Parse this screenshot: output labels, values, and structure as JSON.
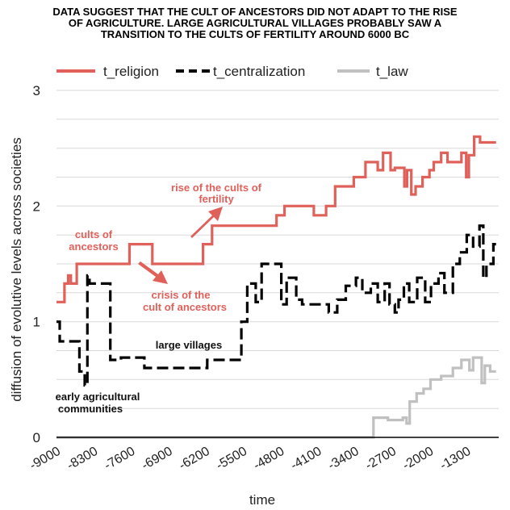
{
  "chart_data": {
    "type": "line",
    "title_lines": [
      "DATA SUGGEST THAT THE CULT OF ANCESTORS DID NOT ADAPT TO THE RISE",
      "OF AGRICULTURE. LARGE AGRICULTURAL VILLAGES PROBABLY SAW A",
      "TRANSITION TO THE CULTS OF FERTILITY AROUND 6000 BC"
    ],
    "xlabel": "time",
    "ylabel": "diffusion of evolutive levels across societies",
    "xlim": [
      -9000,
      -700
    ],
    "ylim": [
      0,
      3
    ],
    "x_ticks": [
      "-9000",
      "-8300",
      "-7600",
      "-6900",
      "-6200",
      "-5500",
      "-4800",
      "-4100",
      "-3400",
      "-2700",
      "-2000",
      "-1300"
    ],
    "y_ticks": [
      "0",
      "1",
      "2",
      "3"
    ],
    "colors": {
      "religion": "#e0605a",
      "centralization": "#000000",
      "law": "#c0c0c0",
      "grid": "#d9d9d9"
    },
    "series": [
      {
        "name": "t_religion",
        "style": "solid",
        "color": "#e0605a",
        "points": [
          [
            -9000,
            1.17
          ],
          [
            -8850,
            1.17
          ],
          [
            -8850,
            1.33
          ],
          [
            -8780,
            1.33
          ],
          [
            -8780,
            1.4
          ],
          [
            -8730,
            1.4
          ],
          [
            -8730,
            1.33
          ],
          [
            -8620,
            1.33
          ],
          [
            -8620,
            1.5
          ],
          [
            -7630,
            1.5
          ],
          [
            -7630,
            1.67
          ],
          [
            -7200,
            1.67
          ],
          [
            -7200,
            1.5
          ],
          [
            -6250,
            1.5
          ],
          [
            -6250,
            1.67
          ],
          [
            -6080,
            1.67
          ],
          [
            -6080,
            1.83
          ],
          [
            -4870,
            1.83
          ],
          [
            -4870,
            1.92
          ],
          [
            -4720,
            1.92
          ],
          [
            -4720,
            2.0
          ],
          [
            -4170,
            2.0
          ],
          [
            -4170,
            1.92
          ],
          [
            -3940,
            1.92
          ],
          [
            -3940,
            2.0
          ],
          [
            -3770,
            2.0
          ],
          [
            -3770,
            2.17
          ],
          [
            -3420,
            2.17
          ],
          [
            -3420,
            2.25
          ],
          [
            -3200,
            2.25
          ],
          [
            -3200,
            2.38
          ],
          [
            -2970,
            2.38
          ],
          [
            -2970,
            2.31
          ],
          [
            -2870,
            2.31
          ],
          [
            -2870,
            2.46
          ],
          [
            -2730,
            2.46
          ],
          [
            -2730,
            2.31
          ],
          [
            -2650,
            2.31
          ],
          [
            -2650,
            2.33
          ],
          [
            -2470,
            2.33
          ],
          [
            -2470,
            2.17
          ],
          [
            -2420,
            2.17
          ],
          [
            -2420,
            2.31
          ],
          [
            -2340,
            2.31
          ],
          [
            -2340,
            2.1
          ],
          [
            -2260,
            2.1
          ],
          [
            -2260,
            2.17
          ],
          [
            -2130,
            2.17
          ],
          [
            -2130,
            2.25
          ],
          [
            -2000,
            2.25
          ],
          [
            -2000,
            2.31
          ],
          [
            -1920,
            2.31
          ],
          [
            -1920,
            2.38
          ],
          [
            -1780,
            2.38
          ],
          [
            -1780,
            2.46
          ],
          [
            -1660,
            2.46
          ],
          [
            -1660,
            2.38
          ],
          [
            -1400,
            2.38
          ],
          [
            -1400,
            2.46
          ],
          [
            -1310,
            2.46
          ],
          [
            -1310,
            2.25
          ],
          [
            -1260,
            2.25
          ],
          [
            -1260,
            2.44
          ],
          [
            -1160,
            2.44
          ],
          [
            -1160,
            2.6
          ],
          [
            -1050,
            2.6
          ],
          [
            -1050,
            2.55
          ],
          [
            -750,
            2.55
          ]
        ]
      },
      {
        "name": "t_centralization",
        "style": "dashed",
        "color": "#000000",
        "points": [
          [
            -9000,
            1.0
          ],
          [
            -8940,
            1.0
          ],
          [
            -8940,
            0.83
          ],
          [
            -8570,
            0.83
          ],
          [
            -8570,
            0.57
          ],
          [
            -8470,
            0.57
          ],
          [
            -8470,
            0.45
          ],
          [
            -8420,
            0.45
          ],
          [
            -8420,
            1.4
          ],
          [
            -8380,
            1.4
          ],
          [
            -8380,
            1.33
          ],
          [
            -7990,
            1.33
          ],
          [
            -7990,
            0.67
          ],
          [
            -7790,
            0.67
          ],
          [
            -7790,
            0.69
          ],
          [
            -7350,
            0.69
          ],
          [
            -7350,
            0.6
          ],
          [
            -6170,
            0.6
          ],
          [
            -6170,
            0.67
          ],
          [
            -5530,
            0.67
          ],
          [
            -5530,
            1.0
          ],
          [
            -5420,
            1.0
          ],
          [
            -5420,
            1.33
          ],
          [
            -5260,
            1.33
          ],
          [
            -5260,
            1.17
          ],
          [
            -5150,
            1.17
          ],
          [
            -5150,
            1.5
          ],
          [
            -4780,
            1.5
          ],
          [
            -4780,
            1.15
          ],
          [
            -4680,
            1.15
          ],
          [
            -4680,
            1.38
          ],
          [
            -4500,
            1.38
          ],
          [
            -4500,
            1.19
          ],
          [
            -4390,
            1.19
          ],
          [
            -4390,
            1.15
          ],
          [
            -3890,
            1.15
          ],
          [
            -3890,
            1.08
          ],
          [
            -3730,
            1.08
          ],
          [
            -3730,
            1.19
          ],
          [
            -3570,
            1.19
          ],
          [
            -3570,
            1.31
          ],
          [
            -3380,
            1.31
          ],
          [
            -3380,
            1.38
          ],
          [
            -3260,
            1.38
          ],
          [
            -3260,
            1.25
          ],
          [
            -3100,
            1.25
          ],
          [
            -3100,
            1.33
          ],
          [
            -2970,
            1.33
          ],
          [
            -2970,
            1.17
          ],
          [
            -2840,
            1.17
          ],
          [
            -2840,
            1.33
          ],
          [
            -2750,
            1.33
          ],
          [
            -2750,
            1.15
          ],
          [
            -2650,
            1.15
          ],
          [
            -2650,
            1.08
          ],
          [
            -2580,
            1.08
          ],
          [
            -2580,
            1.19
          ],
          [
            -2480,
            1.19
          ],
          [
            -2480,
            1.33
          ],
          [
            -2380,
            1.33
          ],
          [
            -2380,
            1.17
          ],
          [
            -2230,
            1.17
          ],
          [
            -2230,
            1.38
          ],
          [
            -2080,
            1.38
          ],
          [
            -2080,
            1.17
          ],
          [
            -1970,
            1.17
          ],
          [
            -1970,
            1.33
          ],
          [
            -1830,
            1.33
          ],
          [
            -1830,
            1.42
          ],
          [
            -1720,
            1.42
          ],
          [
            -1720,
            1.25
          ],
          [
            -1560,
            1.25
          ],
          [
            -1560,
            1.5
          ],
          [
            -1430,
            1.5
          ],
          [
            -1430,
            1.6
          ],
          [
            -1300,
            1.6
          ],
          [
            -1300,
            1.75
          ],
          [
            -1180,
            1.75
          ],
          [
            -1180,
            1.65
          ],
          [
            -1060,
            1.65
          ],
          [
            -1060,
            1.83
          ],
          [
            -990,
            1.83
          ],
          [
            -990,
            1.38
          ],
          [
            -930,
            1.38
          ],
          [
            -930,
            1.5
          ],
          [
            -800,
            1.5
          ],
          [
            -800,
            1.67
          ],
          [
            -750,
            1.67
          ]
        ]
      },
      {
        "name": "t_law",
        "style": "solid",
        "color": "#c0c0c0",
        "points": [
          [
            -9000,
            0.0
          ],
          [
            -3050,
            0.0
          ],
          [
            -3050,
            0.17
          ],
          [
            -2780,
            0.17
          ],
          [
            -2780,
            0.15
          ],
          [
            -2500,
            0.15
          ],
          [
            -2500,
            0.17
          ],
          [
            -2430,
            0.17
          ],
          [
            -2430,
            0.12
          ],
          [
            -2370,
            0.12
          ],
          [
            -2370,
            0.31
          ],
          [
            -2240,
            0.31
          ],
          [
            -2240,
            0.38
          ],
          [
            -2110,
            0.38
          ],
          [
            -2110,
            0.42
          ],
          [
            -1980,
            0.42
          ],
          [
            -1980,
            0.5
          ],
          [
            -1780,
            0.5
          ],
          [
            -1780,
            0.53
          ],
          [
            -1560,
            0.53
          ],
          [
            -1560,
            0.6
          ],
          [
            -1400,
            0.6
          ],
          [
            -1400,
            0.67
          ],
          [
            -1250,
            0.67
          ],
          [
            -1250,
            0.58
          ],
          [
            -1180,
            0.58
          ],
          [
            -1180,
            0.69
          ],
          [
            -1020,
            0.69
          ],
          [
            -1020,
            0.47
          ],
          [
            -960,
            0.47
          ],
          [
            -960,
            0.62
          ],
          [
            -860,
            0.62
          ],
          [
            -860,
            0.57
          ],
          [
            -750,
            0.57
          ]
        ]
      }
    ],
    "annotations": [
      {
        "text_lines": [
          "rise of the cults of",
          "fertility"
        ],
        "color": "#e0605a"
      },
      {
        "text_lines": [
          "cults of",
          "ancestors"
        ],
        "color": "#e0605a"
      },
      {
        "text_lines": [
          "crisis of the",
          "cult of ancestors"
        ],
        "color": "#e0605a"
      },
      {
        "text_lines": [
          "large villages"
        ],
        "color": "#000000"
      },
      {
        "text_lines": [
          "early agricultural",
          "communities"
        ],
        "color": "#000000"
      }
    ]
  }
}
